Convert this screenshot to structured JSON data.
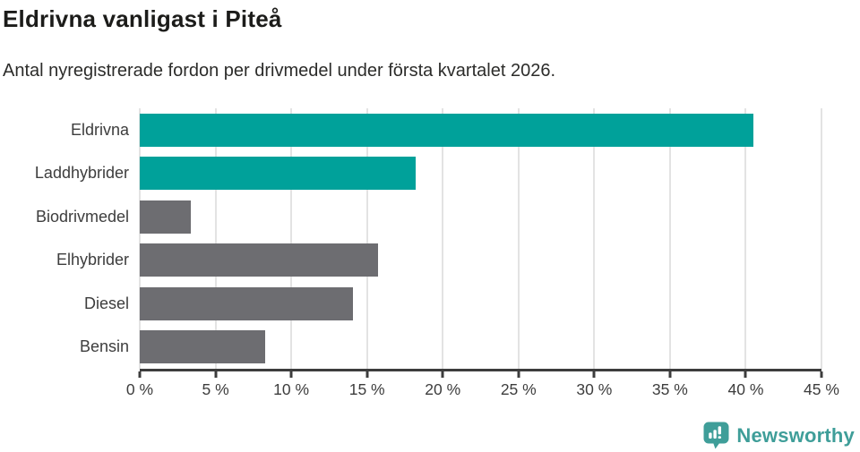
{
  "title": "Eldrivna vanligast i Piteå",
  "subtitle": "Antal nyregistrerade fordon per drivmedel under första kvartalet 2026.",
  "footer": {
    "brand": "Newsworthy"
  },
  "colors": {
    "highlight_teal": "#00a19a",
    "neutral_gray": "#6d6d71",
    "axis": "#3d3d3d",
    "grid": "#e3e3e3",
    "logo_teal": "#3f9e99"
  },
  "chart_data": {
    "type": "bar",
    "orientation": "horizontal",
    "title": "Eldrivna vanligast i Piteå",
    "subtitle": "Antal nyregistrerade fordon per drivmedel under första kvartalet 2026.",
    "categories": [
      "Eldrivna",
      "Laddhybrider",
      "Biodrivmedel",
      "Elhybrider",
      "Diesel",
      "Bensin"
    ],
    "values": [
      40.5,
      18.2,
      3.4,
      15.7,
      14.1,
      8.3
    ],
    "unit": "%",
    "bar_colors": [
      "#00a19a",
      "#00a19a",
      "#6d6d71",
      "#6d6d71",
      "#6d6d71",
      "#6d6d71"
    ],
    "xlabel": "",
    "ylabel": "",
    "xlim": [
      0,
      45
    ],
    "x_tick_values": [
      0,
      5,
      10,
      15,
      20,
      25,
      30,
      35,
      40,
      45
    ],
    "x_tick_labels": [
      "0 %",
      "5 %",
      "10 %",
      "15 %",
      "20 %",
      "25 %",
      "30 %",
      "35 %",
      "40 %",
      "45 %"
    ],
    "grid": true,
    "legend": false
  }
}
